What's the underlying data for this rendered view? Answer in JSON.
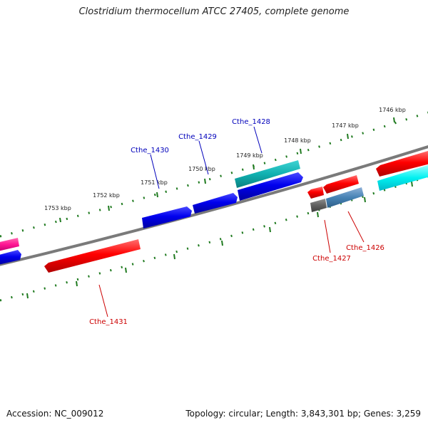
{
  "title": "Clostridium thermocellum ATCC 27405, complete genome",
  "footer": {
    "accession": "Accession: NC_009012",
    "summary": "Topology: circular; Length: 3,843,301 bp; Genes: 3,259"
  },
  "colors": {
    "backbone": "#7a7a7a",
    "tick": "#1f7a1f",
    "forward_label": "#0000bb",
    "reverse_label": "#cc0000",
    "kbp_label": "#222222"
  },
  "kbp_labels": [
    "1746 kbp",
    "1747 kbp",
    "1748 kbp",
    "1749 kbp",
    "1750 kbp",
    "1751 kbp",
    "1752 kbp",
    "1753 kbp"
  ],
  "gene_labels": {
    "cthe_1428": "Cthe_1428",
    "cthe_1429": "Cthe_1429",
    "cthe_1430": "Cthe_1430",
    "cthe_1431": "Cthe_1431",
    "cthe_1426": "Cthe_1426",
    "cthe_1427": "Cthe_1427"
  }
}
